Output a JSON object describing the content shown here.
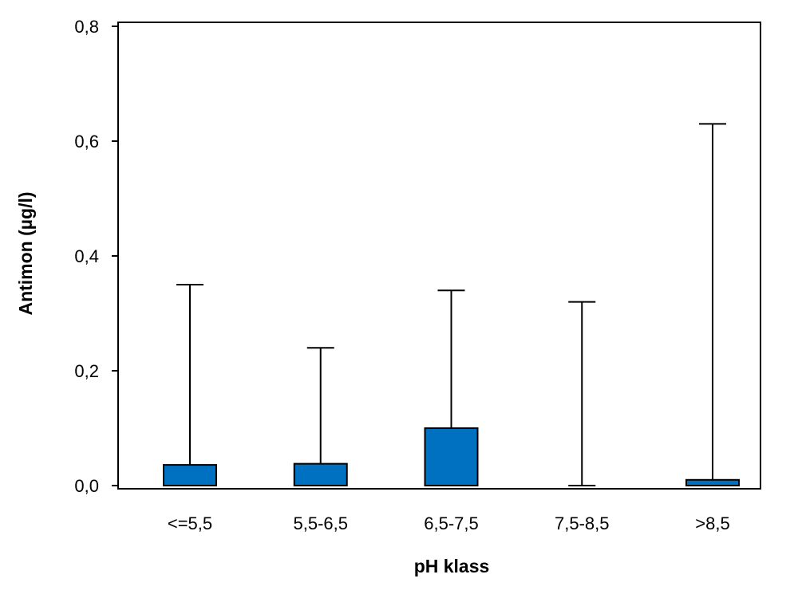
{
  "chart_data": {
    "type": "boxplot",
    "title": "",
    "xlabel": "pH klass",
    "ylabel": "Antimon (µg/l)",
    "categories": [
      "<=5,5",
      "5,5-6,5",
      "6,5-7,5",
      "7,5-8,5",
      ">8,5"
    ],
    "series": [
      {
        "box_low": [
          0.0,
          0.0,
          0.0,
          0.0,
          0.0
        ],
        "box_high": [
          0.036,
          0.038,
          0.1,
          0.0,
          0.01
        ],
        "whisker_high": [
          0.35,
          0.24,
          0.34,
          0.32,
          0.63
        ]
      }
    ],
    "ylim": [
      0,
      0.8
    ],
    "yticks": [
      0,
      0.2,
      0.4,
      0.6,
      0.8
    ],
    "ytick_labels": [
      "0,0",
      "0,2",
      "0,4",
      "0,6",
      "0,8"
    ],
    "grid": false,
    "colors": {
      "box_fill": "#0070c0",
      "stroke": "#000000"
    }
  }
}
